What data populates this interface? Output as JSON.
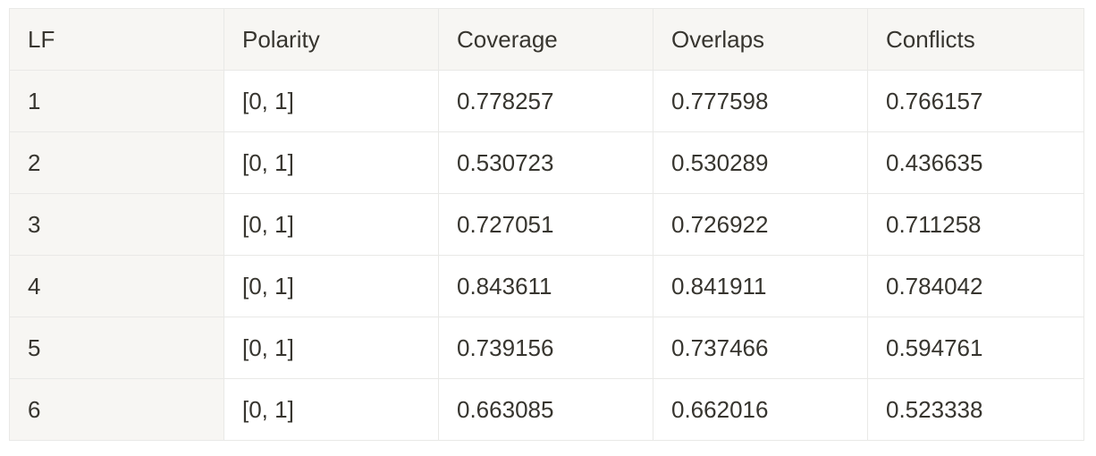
{
  "table": {
    "headers": [
      "LF",
      "Polarity",
      "Coverage",
      "Overlaps",
      "Conflicts"
    ],
    "rows": [
      [
        "1",
        "[0, 1]",
        "0.778257",
        "0.777598",
        "0.766157"
      ],
      [
        "2",
        "[0, 1]",
        "0.530723",
        "0.530289",
        "0.436635"
      ],
      [
        "3",
        "[0, 1]",
        "0.727051",
        "0.726922",
        "0.711258"
      ],
      [
        "4",
        "[0, 1]",
        "0.843611",
        "0.841911",
        "0.784042"
      ],
      [
        "5",
        "[0, 1]",
        "0.739156",
        "0.737466",
        "0.594761"
      ],
      [
        "6",
        "[0, 1]",
        "0.663085",
        "0.662016",
        "0.523338"
      ]
    ]
  },
  "colors": {
    "header_background": "#f7f6f3",
    "first_column_background": "#f7f6f3",
    "border": "#e9e9e7",
    "text": "#37352f"
  }
}
